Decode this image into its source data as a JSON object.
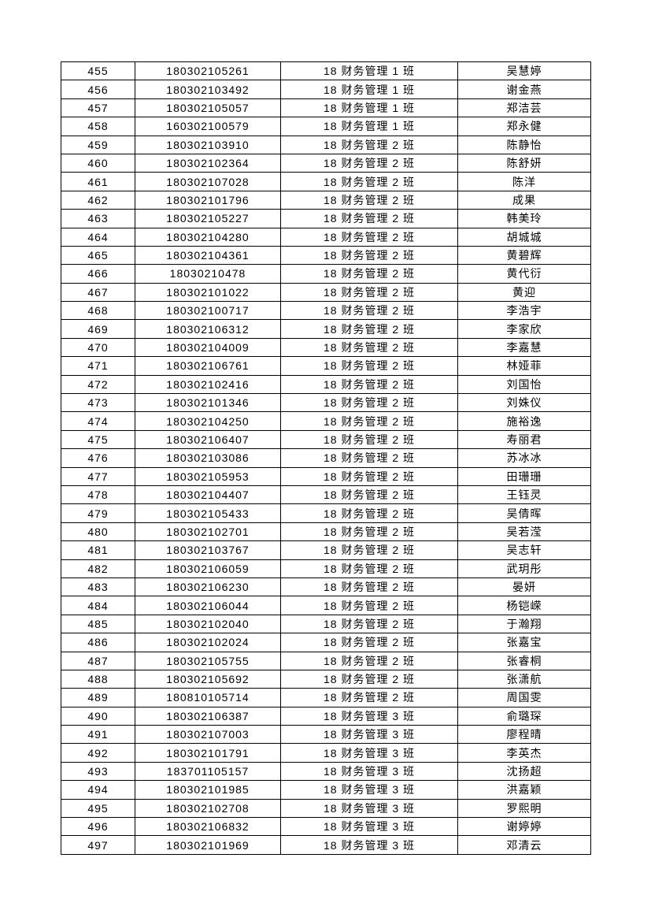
{
  "page": {
    "background_color": "#ffffff",
    "text_color": "#000000",
    "border_color": "#000000"
  },
  "table": {
    "column_keys": [
      "row_number",
      "student_id",
      "class_name",
      "student_name"
    ],
    "rows": [
      [
        "455",
        "180302105261",
        "18 财务管理 1 班",
        "吴慧婷"
      ],
      [
        "456",
        "180302103492",
        "18 财务管理 1 班",
        "谢金燕"
      ],
      [
        "457",
        "180302105057",
        "18 财务管理 1 班",
        "郑洁芸"
      ],
      [
        "458",
        "160302100579",
        "18 财务管理 1 班",
        "郑永健"
      ],
      [
        "459",
        "180302103910",
        "18 财务管理 2 班",
        "陈静怡"
      ],
      [
        "460",
        "180302102364",
        "18 财务管理 2 班",
        "陈舒妍"
      ],
      [
        "461",
        "180302107028",
        "18 财务管理 2 班",
        "陈洋"
      ],
      [
        "462",
        "180302101796",
        "18 财务管理 2 班",
        "成果"
      ],
      [
        "463",
        "180302105227",
        "18 财务管理 2 班",
        "韩美玲"
      ],
      [
        "464",
        "180302104280",
        "18 财务管理 2 班",
        "胡城城"
      ],
      [
        "465",
        "180302104361",
        "18 财务管理 2 班",
        "黄碧辉"
      ],
      [
        "466",
        "18030210478",
        "18 财务管理 2 班",
        "黄代衍"
      ],
      [
        "467",
        "180302101022",
        "18 财务管理 2 班",
        "黄迎"
      ],
      [
        "468",
        "180302100717",
        "18 财务管理 2 班",
        "李浩宇"
      ],
      [
        "469",
        "180302106312",
        "18 财务管理 2 班",
        "李家欣"
      ],
      [
        "470",
        "180302104009",
        "18 财务管理 2 班",
        "李嘉慧"
      ],
      [
        "471",
        "180302106761",
        "18 财务管理 2 班",
        "林娅菲"
      ],
      [
        "472",
        "180302102416",
        "18 财务管理 2 班",
        "刘国怡"
      ],
      [
        "473",
        "180302101346",
        "18 财务管理 2 班",
        "刘姝仪"
      ],
      [
        "474",
        "180302104250",
        "18 财务管理 2 班",
        "施裕逸"
      ],
      [
        "475",
        "180302106407",
        "18 财务管理 2 班",
        "寿丽君"
      ],
      [
        "476",
        "180302103086",
        "18 财务管理 2 班",
        "苏冰冰"
      ],
      [
        "477",
        "180302105953",
        "18 财务管理 2 班",
        "田珊珊"
      ],
      [
        "478",
        "180302104407",
        "18 财务管理 2 班",
        "王钰灵"
      ],
      [
        "479",
        "180302105433",
        "18 财务管理 2 班",
        "吴倩晖"
      ],
      [
        "480",
        "180302102701",
        "18 财务管理 2 班",
        "吴若滢"
      ],
      [
        "481",
        "180302103767",
        "18 财务管理 2 班",
        "吴志轩"
      ],
      [
        "482",
        "180302106059",
        "18 财务管理 2 班",
        "武玥彤"
      ],
      [
        "483",
        "180302106230",
        "18 财务管理 2 班",
        "晏妍"
      ],
      [
        "484",
        "180302106044",
        "18 财务管理 2 班",
        "杨铠嵘"
      ],
      [
        "485",
        "180302102040",
        "18 财务管理 2 班",
        "于瀚翔"
      ],
      [
        "486",
        "180302102024",
        "18 财务管理 2 班",
        "张嘉宝"
      ],
      [
        "487",
        "180302105755",
        "18 财务管理 2 班",
        "张睿桐"
      ],
      [
        "488",
        "180302105692",
        "18 财务管理 2 班",
        "张潇航"
      ],
      [
        "489",
        "180810105714",
        "18 财务管理 2 班",
        "周国雯"
      ],
      [
        "490",
        "180302106387",
        "18 财务管理 3 班",
        "俞璐琛"
      ],
      [
        "491",
        "180302107003",
        "18 财务管理 3 班",
        "廖程晴"
      ],
      [
        "492",
        "180302101791",
        "18 财务管理 3 班",
        "李英杰"
      ],
      [
        "493",
        "183701105157",
        "18 财务管理 3 班",
        "沈扬超"
      ],
      [
        "494",
        "180302101985",
        "18 财务管理 3 班",
        "洪嘉颖"
      ],
      [
        "495",
        "180302102708",
        "18 财务管理 3 班",
        "罗熙明"
      ],
      [
        "496",
        "180302106832",
        "18 财务管理 3 班",
        "谢婷婷"
      ],
      [
        "497",
        "180302101969",
        "18 财务管理 3 班",
        "邓清云"
      ]
    ]
  }
}
